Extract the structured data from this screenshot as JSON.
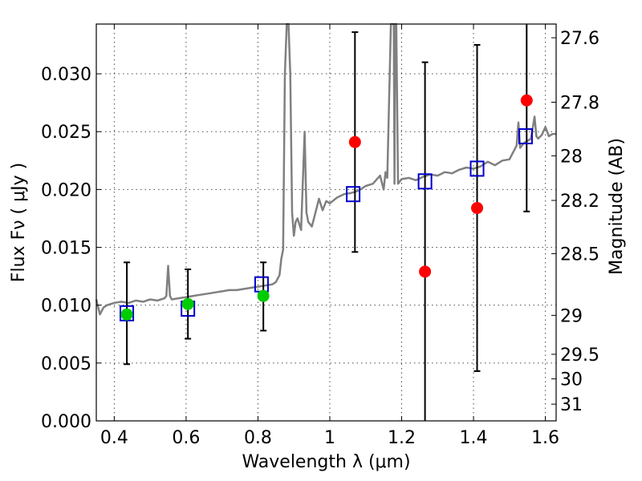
{
  "chart_data": {
    "type": "scatter",
    "title": "",
    "xlabel": "Wavelength  λ (μm)",
    "ylabel": "Flux  Fν  ( μJy )",
    "y2label": "Magnitude (AB)",
    "xlim": [
      0.35,
      1.63
    ],
    "ylim": [
      0.0,
      0.0343
    ],
    "grid": true,
    "legend": "none",
    "x_ticks": [
      {
        "value": 0.4,
        "label": "0.4"
      },
      {
        "value": 0.6,
        "label": "0.6"
      },
      {
        "value": 0.8,
        "label": "0.8"
      },
      {
        "value": 1.0,
        "label": "1"
      },
      {
        "value": 1.2,
        "label": "1.2"
      },
      {
        "value": 1.4,
        "label": "1.4"
      },
      {
        "value": 1.6,
        "label": "1.6"
      }
    ],
    "y_ticks": [
      {
        "value": 0.0,
        "label": "0.000"
      },
      {
        "value": 0.005,
        "label": "0.005"
      },
      {
        "value": 0.01,
        "label": "0.010"
      },
      {
        "value": 0.015,
        "label": "0.015"
      },
      {
        "value": 0.02,
        "label": "0.020"
      },
      {
        "value": 0.025,
        "label": "0.025"
      },
      {
        "value": 0.03,
        "label": "0.030"
      }
    ],
    "y2_ticks": [
      {
        "value": 27.6,
        "label": "27.6"
      },
      {
        "value": 27.8,
        "label": "27.8"
      },
      {
        "value": 28.0,
        "label": "28"
      },
      {
        "value": 28.2,
        "label": "28.2"
      },
      {
        "value": 28.5,
        "label": "28.5"
      },
      {
        "value": 29.0,
        "label": "29"
      },
      {
        "value": 29.5,
        "label": "29.5"
      },
      {
        "value": 30.0,
        "label": "30"
      },
      {
        "value": 31.0,
        "label": "31"
      }
    ],
    "model_spectrum": {
      "color": "#808080",
      "x": [
        0.35,
        0.36,
        0.37,
        0.38,
        0.39,
        0.4,
        0.42,
        0.44,
        0.46,
        0.48,
        0.5,
        0.52,
        0.54,
        0.545,
        0.55,
        0.555,
        0.56,
        0.58,
        0.6,
        0.62,
        0.64,
        0.66,
        0.68,
        0.7,
        0.72,
        0.74,
        0.76,
        0.78,
        0.8,
        0.82,
        0.84,
        0.85,
        0.86,
        0.865,
        0.87,
        0.875,
        0.88,
        0.882,
        0.885,
        0.89,
        0.895,
        0.9,
        0.905,
        0.91,
        0.92,
        0.93,
        0.935,
        0.94,
        0.95,
        0.96,
        0.97,
        0.98,
        0.99,
        1.0,
        1.02,
        1.04,
        1.06,
        1.08,
        1.1,
        1.12,
        1.14,
        1.15,
        1.155,
        1.16,
        1.17,
        1.175,
        1.178,
        1.18,
        1.182,
        1.185,
        1.19,
        1.2,
        1.22,
        1.24,
        1.26,
        1.28,
        1.3,
        1.32,
        1.34,
        1.36,
        1.38,
        1.4,
        1.42,
        1.44,
        1.46,
        1.48,
        1.5,
        1.51,
        1.52,
        1.525,
        1.53,
        1.54,
        1.56,
        1.57,
        1.575,
        1.58,
        1.59,
        1.6,
        1.61,
        1.62,
        1.63
      ],
      "y": [
        0.0105,
        0.0092,
        0.0098,
        0.01,
        0.0101,
        0.0102,
        0.0103,
        0.0102,
        0.0104,
        0.0103,
        0.0105,
        0.0104,
        0.0106,
        0.0108,
        0.0134,
        0.0108,
        0.0105,
        0.0106,
        0.0107,
        0.0108,
        0.0109,
        0.011,
        0.0111,
        0.0112,
        0.0113,
        0.0113,
        0.0114,
        0.0115,
        0.0116,
        0.0117,
        0.0118,
        0.012,
        0.0126,
        0.014,
        0.0148,
        0.03,
        0.0343,
        0.0343,
        0.0343,
        0.03,
        0.018,
        0.016,
        0.0172,
        0.0175,
        0.0165,
        0.025,
        0.018,
        0.0172,
        0.0168,
        0.018,
        0.0192,
        0.0182,
        0.019,
        0.0188,
        0.0193,
        0.0196,
        0.0197,
        0.0199,
        0.0203,
        0.0205,
        0.0212,
        0.02,
        0.0215,
        0.021,
        0.0343,
        0.0343,
        0.0343,
        0.0205,
        0.0343,
        0.0343,
        0.0205,
        0.0209,
        0.021,
        0.0208,
        0.0211,
        0.0213,
        0.0212,
        0.0215,
        0.0214,
        0.0217,
        0.0219,
        0.0218,
        0.022,
        0.0224,
        0.0221,
        0.0225,
        0.0226,
        0.0232,
        0.0238,
        0.0258,
        0.0236,
        0.024,
        0.0244,
        0.0263,
        0.0246,
        0.0244,
        0.0247,
        0.0254,
        0.0246,
        0.0248,
        0.0248
      ]
    },
    "series": [
      {
        "marker": "square-open",
        "color": "#0000cc",
        "x": [
          0.435,
          0.605,
          0.81,
          1.065,
          1.265,
          1.41,
          1.545
        ],
        "y": [
          0.0093,
          0.0097,
          0.0118,
          0.0196,
          0.0207,
          0.0218,
          0.0246
        ]
      },
      {
        "marker": "circle",
        "color": "#00cc00",
        "x": [
          0.435,
          0.605,
          0.815
        ],
        "y": [
          0.0092,
          0.0101,
          0.0108
        ],
        "yerr_low": [
          0.0049,
          0.0071,
          0.0078
        ],
        "yerr_high": [
          0.0137,
          0.0131,
          0.0137
        ]
      },
      {
        "marker": "circle",
        "color": "#ff0000",
        "x": [
          1.07,
          1.265,
          1.41,
          1.548
        ],
        "y": [
          0.0241,
          0.0129,
          0.0184,
          0.0277
        ],
        "yerr_low": [
          0.0146,
          0.0,
          0.0043,
          0.0181
        ],
        "yerr_high": [
          0.0336,
          0.031,
          0.0325,
          0.0343
        ]
      }
    ]
  }
}
